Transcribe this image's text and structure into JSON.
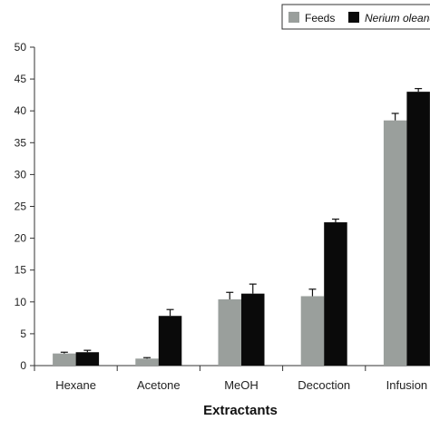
{
  "chart_data": {
    "type": "bar",
    "categories": [
      "Hexane",
      "Acetone",
      "MeOH",
      "Decoction",
      "Infusion"
    ],
    "series": [
      {
        "name": "Feeds",
        "color": "#9a9f9c",
        "values": [
          1.9,
          1.1,
          10.4,
          10.9,
          38.5
        ],
        "errors": [
          0.2,
          0.15,
          1.1,
          1.1,
          1.1
        ]
      },
      {
        "name": "Nerium oleander",
        "color": "#0a0a0a",
        "values": [
          2.1,
          7.8,
          11.3,
          22.5,
          43.0
        ],
        "errors": [
          0.3,
          1.0,
          1.5,
          0.5,
          0.5
        ]
      }
    ],
    "xlabel": "Extractants",
    "ylabel": "",
    "ylim": [
      0,
      50
    ],
    "yticks": [
      "0",
      "5",
      "10",
      "15",
      "20",
      "25",
      "30",
      "35",
      "40",
      "45",
      "50"
    ],
    "legend_position": "top-right",
    "grid": false
  }
}
